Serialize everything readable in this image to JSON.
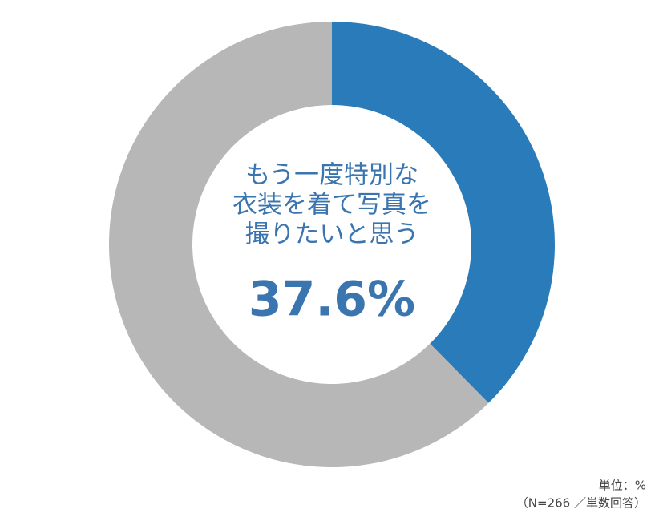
{
  "chart_data": {
    "type": "donut",
    "values": [
      37.6,
      62.4
    ],
    "colors": [
      "#2a7bba",
      "#b7b7b7"
    ],
    "value_labels": [
      "37.6%",
      null
    ],
    "center_text": [
      "もう一度特別な",
      "衣装を着て写真を",
      "撮りたいと思う"
    ],
    "notes": [
      "単位：%",
      "（N=266 ／単数回答）"
    ]
  }
}
